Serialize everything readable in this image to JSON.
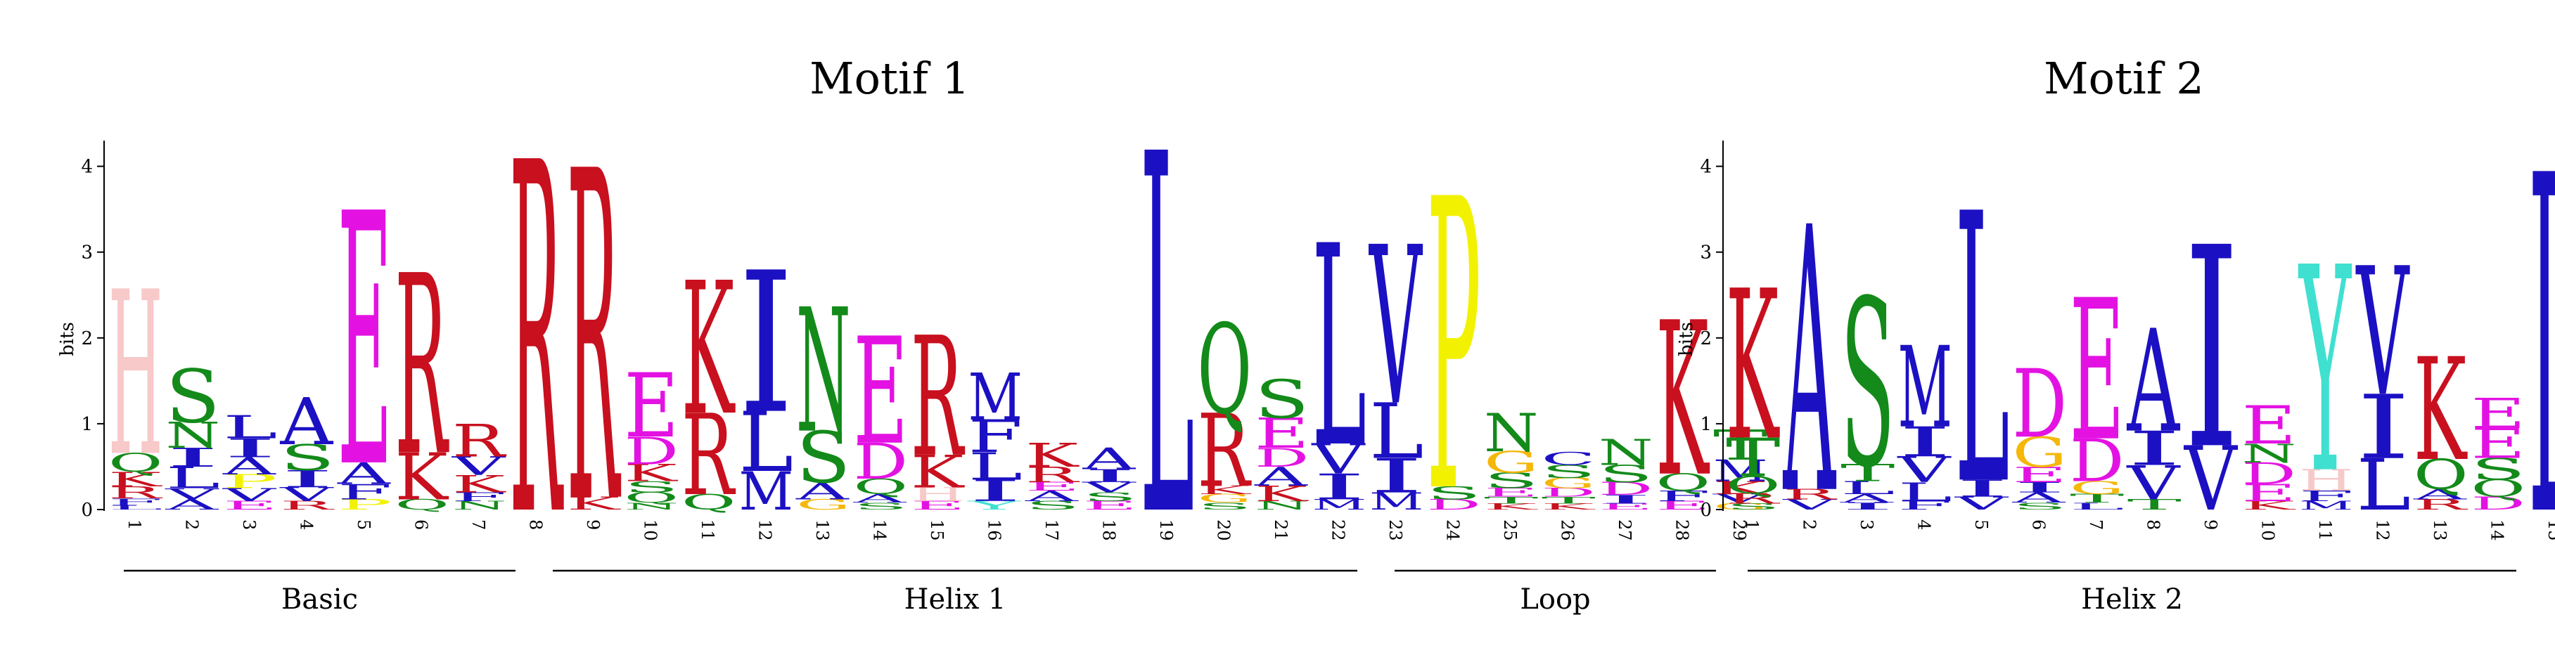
{
  "chart_data": [
    {
      "type": "sequence-logo",
      "title": "Motif 1",
      "ylabel": "bits",
      "ylim": [
        0,
        4.3
      ],
      "yticks": [
        0,
        1,
        2,
        3,
        4
      ],
      "positions": [
        {
          "x": "1",
          "letters": [
            {
              "aa": "L",
              "bits": 0.05
            },
            {
              "aa": "F",
              "bits": 0.08
            },
            {
              "aa": "R",
              "bits": 0.14
            },
            {
              "aa": "K",
              "bits": 0.17
            },
            {
              "aa": "Q",
              "bits": 0.22
            },
            {
              "aa": "H",
              "bits": 1.92
            }
          ]
        },
        {
          "x": "2",
          "letters": [
            {
              "aa": "A",
              "bits": 0.12
            },
            {
              "aa": "V",
              "bits": 0.13
            },
            {
              "aa": "L",
              "bits": 0.25
            },
            {
              "aa": "I",
              "bits": 0.22
            },
            {
              "aa": "N",
              "bits": 0.3
            },
            {
              "aa": "S",
              "bits": 0.62
            }
          ]
        },
        {
          "x": "3",
          "letters": [
            {
              "aa": "E",
              "bits": 0.1
            },
            {
              "aa": "V",
              "bits": 0.15
            },
            {
              "aa": "P",
              "bits": 0.16
            },
            {
              "aa": "A",
              "bits": 0.2
            },
            {
              "aa": "I",
              "bits": 0.22
            },
            {
              "aa": "L",
              "bits": 0.27
            }
          ]
        },
        {
          "x": "4",
          "letters": [
            {
              "aa": "R",
              "bits": 0.1
            },
            {
              "aa": "V",
              "bits": 0.16
            },
            {
              "aa": "I",
              "bits": 0.2
            },
            {
              "aa": "S",
              "bits": 0.3
            },
            {
              "aa": "A",
              "bits": 0.55
            }
          ]
        },
        {
          "x": "5",
          "letters": [
            {
              "aa": "P",
              "bits": 0.12
            },
            {
              "aa": "F",
              "bits": 0.18
            },
            {
              "aa": "A",
              "bits": 0.25
            },
            {
              "aa": "E",
              "bits": 2.95
            }
          ]
        },
        {
          "x": "6",
          "letters": [
            {
              "aa": "Q",
              "bits": 0.12
            },
            {
              "aa": "K",
              "bits": 0.55
            },
            {
              "aa": "R",
              "bits": 2.1
            }
          ]
        },
        {
          "x": "7",
          "letters": [
            {
              "aa": "N",
              "bits": 0.1
            },
            {
              "aa": "F",
              "bits": 0.1
            },
            {
              "aa": "K",
              "bits": 0.2
            },
            {
              "aa": "V",
              "bits": 0.22
            },
            {
              "aa": "R",
              "bits": 0.38
            }
          ]
        },
        {
          "x": "8",
          "letters": [
            {
              "aa": "R",
              "bits": 4.1
            }
          ]
        },
        {
          "x": "9",
          "letters": [
            {
              "aa": "K",
              "bits": 0.15
            },
            {
              "aa": "R",
              "bits": 3.85
            }
          ]
        },
        {
          "x": "10",
          "letters": [
            {
              "aa": "N",
              "bits": 0.08
            },
            {
              "aa": "Q",
              "bits": 0.12
            },
            {
              "aa": "S",
              "bits": 0.13
            },
            {
              "aa": "K",
              "bits": 0.2
            },
            {
              "aa": "D",
              "bits": 0.32
            },
            {
              "aa": "E",
              "bits": 0.75
            }
          ]
        },
        {
          "x": "11",
          "letters": [
            {
              "aa": "Q",
              "bits": 0.18
            },
            {
              "aa": "R",
              "bits": 0.95
            },
            {
              "aa": "K",
              "bits": 1.55
            }
          ]
        },
        {
          "x": "12",
          "letters": [
            {
              "aa": "M",
              "bits": 0.45
            },
            {
              "aa": "L",
              "bits": 0.7
            },
            {
              "aa": "I",
              "bits": 1.65
            }
          ]
        },
        {
          "x": "13",
          "letters": [
            {
              "aa": "G",
              "bits": 0.12
            },
            {
              "aa": "A",
              "bits": 0.2
            },
            {
              "aa": "S",
              "bits": 0.6
            },
            {
              "aa": "N",
              "bits": 1.45
            }
          ]
        },
        {
          "x": "14",
          "letters": [
            {
              "aa": "S",
              "bits": 0.08
            },
            {
              "aa": "A",
              "bits": 0.1
            },
            {
              "aa": "Q",
              "bits": 0.18
            },
            {
              "aa": "D",
              "bits": 0.42
            },
            {
              "aa": "E",
              "bits": 1.25
            }
          ]
        },
        {
          "x": "15",
          "letters": [
            {
              "aa": "E",
              "bits": 0.1
            },
            {
              "aa": "H",
              "bits": 0.16
            },
            {
              "aa": "K",
              "bits": 0.38
            },
            {
              "aa": "R",
              "bits": 1.4
            }
          ]
        },
        {
          "x": "16",
          "letters": [
            {
              "aa": "Y",
              "bits": 0.1
            },
            {
              "aa": "I",
              "bits": 0.25
            },
            {
              "aa": "L",
              "bits": 0.32
            },
            {
              "aa": "F",
              "bits": 0.38
            },
            {
              "aa": "M",
              "bits": 0.55
            }
          ]
        },
        {
          "x": "17",
          "letters": [
            {
              "aa": "S",
              "bits": 0.1
            },
            {
              "aa": "A",
              "bits": 0.12
            },
            {
              "aa": "E",
              "bits": 0.1
            },
            {
              "aa": "R",
              "bits": 0.18
            },
            {
              "aa": "K",
              "bits": 0.28
            }
          ]
        },
        {
          "x": "18",
          "letters": [
            {
              "aa": "E",
              "bits": 0.1
            },
            {
              "aa": "S",
              "bits": 0.1
            },
            {
              "aa": "V",
              "bits": 0.12
            },
            {
              "aa": "I",
              "bits": 0.15
            },
            {
              "aa": "A",
              "bits": 0.25
            }
          ]
        },
        {
          "x": "19",
          "letters": [
            {
              "aa": "L",
              "bits": 4.2
            }
          ]
        },
        {
          "x": "20",
          "letters": [
            {
              "aa": "S",
              "bits": 0.08
            },
            {
              "aa": "G",
              "bits": 0.1
            },
            {
              "aa": "K",
              "bits": 0.1
            },
            {
              "aa": "R",
              "bits": 0.85
            },
            {
              "aa": "Q",
              "bits": 1.05
            }
          ]
        },
        {
          "x": "21",
          "letters": [
            {
              "aa": "N",
              "bits": 0.1
            },
            {
              "aa": "K",
              "bits": 0.18
            },
            {
              "aa": "A",
              "bits": 0.22
            },
            {
              "aa": "D",
              "bits": 0.22
            },
            {
              "aa": "E",
              "bits": 0.35
            },
            {
              "aa": "S",
              "bits": 0.45
            }
          ]
        },
        {
          "x": "22",
          "letters": [
            {
              "aa": "M",
              "bits": 0.12
            },
            {
              "aa": "I",
              "bits": 0.3
            },
            {
              "aa": "V",
              "bits": 0.35
            },
            {
              "aa": "L",
              "bits": 2.35
            }
          ]
        },
        {
          "x": "23",
          "letters": [
            {
              "aa": "M",
              "bits": 0.2
            },
            {
              "aa": "I",
              "bits": 0.4
            },
            {
              "aa": "L",
              "bits": 0.65
            },
            {
              "aa": "V",
              "bits": 1.85
            }
          ]
        },
        {
          "x": "24",
          "letters": [
            {
              "aa": "D",
              "bits": 0.12
            },
            {
              "aa": "S",
              "bits": 0.15
            },
            {
              "aa": "P",
              "bits": 3.4
            }
          ]
        },
        {
          "x": "25",
          "letters": [
            {
              "aa": "K",
              "bits": 0.07
            },
            {
              "aa": "T",
              "bits": 0.08
            },
            {
              "aa": "E",
              "bits": 0.1
            },
            {
              "aa": "S",
              "bits": 0.18
            },
            {
              "aa": "G",
              "bits": 0.25
            },
            {
              "aa": "N",
              "bits": 0.45
            }
          ]
        },
        {
          "x": "26",
          "letters": [
            {
              "aa": "K",
              "bits": 0.07
            },
            {
              "aa": "T",
              "bits": 0.08
            },
            {
              "aa": "D",
              "bits": 0.1
            },
            {
              "aa": "G",
              "bits": 0.12
            },
            {
              "aa": "S",
              "bits": 0.15
            },
            {
              "aa": "C",
              "bits": 0.15
            }
          ]
        },
        {
          "x": "27",
          "letters": [
            {
              "aa": "E",
              "bits": 0.07
            },
            {
              "aa": "I",
              "bits": 0.1
            },
            {
              "aa": "D",
              "bits": 0.15
            },
            {
              "aa": "S",
              "bits": 0.2
            },
            {
              "aa": "N",
              "bits": 0.3
            }
          ]
        },
        {
          "x": "28",
          "letters": [
            {
              "aa": "E",
              "bits": 0.1
            },
            {
              "aa": "F",
              "bits": 0.12
            },
            {
              "aa": "Q",
              "bits": 0.2
            },
            {
              "aa": "K",
              "bits": 1.8
            }
          ]
        },
        {
          "x": "29",
          "letters": [
            {
              "aa": "G",
              "bits": 0.08
            },
            {
              "aa": "V",
              "bits": 0.1
            },
            {
              "aa": "K",
              "bits": 0.15
            },
            {
              "aa": "M",
              "bits": 0.25
            },
            {
              "aa": "T",
              "bits": 0.35
            }
          ]
        }
      ],
      "regions": [
        {
          "label": "Basic",
          "from": "1",
          "to": "8"
        },
        {
          "label": "Helix 1",
          "from": "9",
          "to": "24"
        },
        {
          "label": "Loop",
          "from": "25",
          "to": "29"
        }
      ]
    },
    {
      "type": "sequence-logo",
      "title": "Motif 2",
      "ylabel": "bits",
      "ylim": [
        0,
        4.3
      ],
      "yticks": [
        0,
        1,
        2,
        3,
        4
      ],
      "positions": [
        {
          "x": "1",
          "letters": [
            {
              "aa": "S",
              "bits": 0.07
            },
            {
              "aa": "R",
              "bits": 0.12
            },
            {
              "aa": "Q",
              "bits": 0.2
            },
            {
              "aa": "T",
              "bits": 0.45
            },
            {
              "aa": "K",
              "bits": 1.75
            }
          ]
        },
        {
          "x": "2",
          "letters": [
            {
              "aa": "V",
              "bits": 0.12
            },
            {
              "aa": "R",
              "bits": 0.12
            },
            {
              "aa": "A",
              "bits": 3.1
            }
          ]
        },
        {
          "x": "3",
          "letters": [
            {
              "aa": "I",
              "bits": 0.08
            },
            {
              "aa": "A",
              "bits": 0.1
            },
            {
              "aa": "L",
              "bits": 0.15
            },
            {
              "aa": "T",
              "bits": 0.2
            },
            {
              "aa": "S",
              "bits": 1.95
            }
          ]
        },
        {
          "x": "4",
          "letters": [
            {
              "aa": "F",
              "bits": 0.1
            },
            {
              "aa": "L",
              "bits": 0.22
            },
            {
              "aa": "V",
              "bits": 0.3
            },
            {
              "aa": "I",
              "bits": 0.35
            },
            {
              "aa": "M",
              "bits": 0.95
            }
          ]
        },
        {
          "x": "5",
          "letters": [
            {
              "aa": "V",
              "bits": 0.15
            },
            {
              "aa": "I",
              "bits": 0.2
            },
            {
              "aa": "L",
              "bits": 3.15
            }
          ]
        },
        {
          "x": "6",
          "letters": [
            {
              "aa": "S",
              "bits": 0.08
            },
            {
              "aa": "A",
              "bits": 0.12
            },
            {
              "aa": "I",
              "bits": 0.12
            },
            {
              "aa": "E",
              "bits": 0.18
            },
            {
              "aa": "G",
              "bits": 0.35
            },
            {
              "aa": "D",
              "bits": 0.8
            }
          ]
        },
        {
          "x": "7",
          "letters": [
            {
              "aa": "L",
              "bits": 0.08
            },
            {
              "aa": "T",
              "bits": 0.1
            },
            {
              "aa": "G",
              "bits": 0.15
            },
            {
              "aa": "D",
              "bits": 0.5
            },
            {
              "aa": "E",
              "bits": 1.65
            }
          ]
        },
        {
          "x": "8",
          "letters": [
            {
              "aa": "T",
              "bits": 0.12
            },
            {
              "aa": "V",
              "bits": 0.4
            },
            {
              "aa": "I",
              "bits": 0.4
            },
            {
              "aa": "A",
              "bits": 1.2
            }
          ]
        },
        {
          "x": "9",
          "letters": [
            {
              "aa": "V",
              "bits": 0.75
            },
            {
              "aa": "I",
              "bits": 2.35
            }
          ]
        },
        {
          "x": "10",
          "letters": [
            {
              "aa": "K",
              "bits": 0.1
            },
            {
              "aa": "E",
              "bits": 0.2
            },
            {
              "aa": "D",
              "bits": 0.25
            },
            {
              "aa": "N",
              "bits": 0.22
            },
            {
              "aa": "E",
              "bits": 0.45
            }
          ]
        },
        {
          "x": "11",
          "letters": [
            {
              "aa": "M",
              "bits": 0.1
            },
            {
              "aa": "F",
              "bits": 0.12
            },
            {
              "aa": "H",
              "bits": 0.25
            },
            {
              "aa": "Y",
              "bits": 2.4
            }
          ]
        },
        {
          "x": "12",
          "letters": [
            {
              "aa": "L",
              "bits": 0.6
            },
            {
              "aa": "I",
              "bits": 0.75
            },
            {
              "aa": "V",
              "bits": 1.5
            }
          ]
        },
        {
          "x": "13",
          "letters": [
            {
              "aa": "R",
              "bits": 0.12
            },
            {
              "aa": "A",
              "bits": 0.12
            },
            {
              "aa": "Q",
              "bits": 0.35
            },
            {
              "aa": "K",
              "bits": 1.2
            }
          ]
        },
        {
          "x": "14",
          "letters": [
            {
              "aa": "D",
              "bits": 0.15
            },
            {
              "aa": "Q",
              "bits": 0.2
            },
            {
              "aa": "S",
              "bits": 0.25
            },
            {
              "aa": "E",
              "bits": 0.35
            },
            {
              "aa": "E",
              "bits": 0.35
            }
          ]
        },
        {
          "x": "15",
          "letters": [
            {
              "aa": "L",
              "bits": 3.95
            }
          ]
        }
      ],
      "regions": [
        {
          "label": "Helix 2",
          "from": "1",
          "to": "15"
        }
      ]
    }
  ],
  "colors": {
    "acidic": "#e312e3",
    "basic": "#c8101f",
    "hydrophobic": "#1c10c3",
    "polar": "#138a1a",
    "small": "#f5b70a",
    "histidine": "#f7c9c9",
    "aromatic_y": "#3fe0d0",
    "proline": "#f2f200",
    "axis": "#000000"
  }
}
